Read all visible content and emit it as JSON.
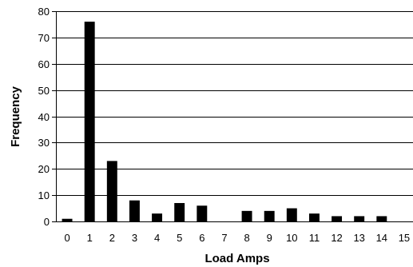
{
  "chart_data": {
    "type": "bar",
    "categories": [
      "0",
      "1",
      "2",
      "3",
      "4",
      "5",
      "6",
      "7",
      "8",
      "9",
      "10",
      "11",
      "12",
      "13",
      "14",
      "15"
    ],
    "values": [
      1,
      76,
      23,
      8,
      3,
      7,
      6,
      0,
      4,
      4,
      5,
      3,
      2,
      2,
      2,
      0
    ],
    "title": "",
    "xlabel": "Load Amps",
    "ylabel": "Frequency",
    "ylim": [
      0,
      80
    ],
    "yticks": [
      0,
      10,
      20,
      30,
      40,
      50,
      60,
      70,
      80
    ],
    "grid": true,
    "bar_color": "#000000",
    "grid_color": "#000000"
  }
}
